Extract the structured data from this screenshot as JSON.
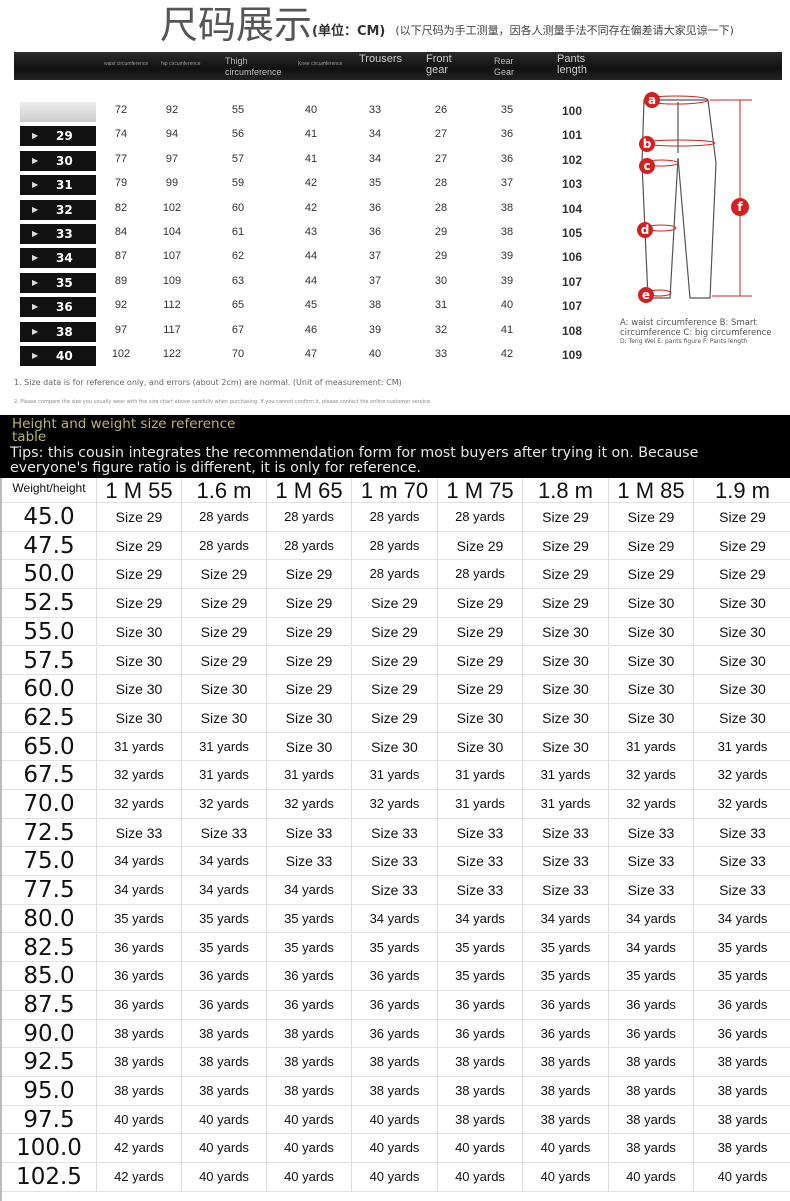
{
  "title": {
    "main": "尺码展示",
    "unit": "(单位：CM)",
    "note": "(以下尺码为手工测量，因各人测量手法不同存在偏差请大家见谅一下)"
  },
  "header": {
    "columns": [
      "waist circumference",
      "hip circumference",
      "Thigh circumference",
      "Knee circumference",
      "Trousers",
      "Front gear",
      "Rear Gear",
      "Pants length"
    ]
  },
  "size_chart": {
    "rows": [
      {
        "size": "",
        "values": [
          "72",
          "92",
          "55",
          "40",
          "33",
          "26",
          "35",
          "100"
        ]
      },
      {
        "size": "29",
        "values": [
          "74",
          "94",
          "56",
          "41",
          "34",
          "27",
          "36",
          "101"
        ]
      },
      {
        "size": "30",
        "values": [
          "77",
          "97",
          "57",
          "41",
          "34",
          "27",
          "36",
          "102"
        ]
      },
      {
        "size": "31",
        "values": [
          "79",
          "99",
          "59",
          "42",
          "35",
          "28",
          "37",
          "103"
        ]
      },
      {
        "size": "32",
        "values": [
          "82",
          "102",
          "60",
          "42",
          "36",
          "28",
          "38",
          "104"
        ]
      },
      {
        "size": "33",
        "values": [
          "84",
          "104",
          "61",
          "43",
          "36",
          "29",
          "38",
          "105"
        ]
      },
      {
        "size": "34",
        "values": [
          "87",
          "107",
          "62",
          "44",
          "37",
          "29",
          "39",
          "106"
        ]
      },
      {
        "size": "35",
        "values": [
          "89",
          "109",
          "63",
          "44",
          "37",
          "30",
          "39",
          "107"
        ]
      },
      {
        "size": "36",
        "values": [
          "92",
          "112",
          "65",
          "45",
          "38",
          "31",
          "40",
          "107"
        ]
      },
      {
        "size": "38",
        "values": [
          "97",
          "117",
          "67",
          "46",
          "39",
          "32",
          "41",
          "108"
        ]
      },
      {
        "size": "40",
        "values": [
          "102",
          "122",
          "70",
          "47",
          "40",
          "33",
          "42",
          "109"
        ]
      }
    ]
  },
  "figure": {
    "labels": [
      "a",
      "b",
      "c",
      "d",
      "e",
      "f"
    ],
    "caption": "A: waist circumference B: Smart circumference C: big circumference",
    "caption_sub": "D: Teng Wei E: pants figure F: Pants length",
    "accent": "#d42020"
  },
  "notes": [
    "1. Size data is for reference only, and errors (about 2cm) are normal. (Unit of measurement: CM)",
    "2. Please compare the size you usually wear with the size chart above carefully when purchasing. If you cannot confirm it, please contact the online customer service."
  ],
  "reference": {
    "heading": "Height and weight size reference table",
    "tips": "Tips: this cousin integrates the recommendation form for most buyers after trying it on. Because everyone's figure ratio is different, it is only for reference."
  },
  "grid": {
    "headers": [
      "Weight/height",
      "1 M 55",
      "1.6 m",
      "1 M 65",
      "1 m 70",
      "1 M 75",
      "1.8 m",
      "1 M 85",
      "1.9 m"
    ],
    "rows": [
      [
        "45.0",
        "Size 29",
        "28 yards",
        "28 yards",
        "28 yards",
        "28 yards",
        "Size 29",
        "Size 29",
        "Size 29"
      ],
      [
        "47.5",
        "Size 29",
        "28 yards",
        "28 yards",
        "28 yards",
        "Size 29",
        "Size 29",
        "Size 29",
        "Size 29"
      ],
      [
        "50.0",
        "Size 29",
        "Size 29",
        "Size 29",
        "28 yards",
        "28 yards",
        "Size 29",
        "Size 29",
        "Size 29"
      ],
      [
        "52.5",
        "Size 29",
        "Size 29",
        "Size 29",
        "Size 29",
        "Size 29",
        "Size 29",
        "Size 30",
        "Size 30"
      ],
      [
        "55.0",
        "Size 30",
        "Size 29",
        "Size 29",
        "Size 29",
        "Size 29",
        "Size 30",
        "Size 30",
        "Size 30"
      ],
      [
        "57.5",
        "Size 30",
        "Size 29",
        "Size 29",
        "Size 29",
        "Size 29",
        "Size 30",
        "Size 30",
        "Size 30"
      ],
      [
        "60.0",
        "Size 30",
        "Size 30",
        "Size 29",
        "Size 29",
        "Size 29",
        "Size 30",
        "Size 30",
        "Size 30"
      ],
      [
        "62.5",
        "Size 30",
        "Size 30",
        "Size 30",
        "Size 29",
        "Size 30",
        "Size 30",
        "Size 30",
        "Size 30"
      ],
      [
        "65.0",
        "31 yards",
        "31 yards",
        "Size 30",
        "Size 30",
        "Size 30",
        "Size 30",
        "31 yards",
        "31 yards"
      ],
      [
        "67.5",
        "32 yards",
        "31 yards",
        "31 yards",
        "31 yards",
        "31 yards",
        "31 yards",
        "32 yards",
        "32 yards"
      ],
      [
        "70.0",
        "32 yards",
        "32 yards",
        "32 yards",
        "32 yards",
        "31 yards",
        "31 yards",
        "32 yards",
        "32 yards"
      ],
      [
        "72.5",
        "Size 33",
        "Size 33",
        "Size 33",
        "Size 33",
        "Size 33",
        "Size 33",
        "Size 33",
        "Size 33"
      ],
      [
        "75.0",
        "34 yards",
        "34 yards",
        "Size 33",
        "Size 33",
        "Size 33",
        "Size 33",
        "Size 33",
        "Size 33"
      ],
      [
        "77.5",
        "34 yards",
        "34 yards",
        "34 yards",
        "Size 33",
        "Size 33",
        "Size 33",
        "Size 33",
        "Size 33"
      ],
      [
        "80.0",
        "35 yards",
        "35 yards",
        "35 yards",
        "34 yards",
        "34 yards",
        "34 yards",
        "34 yards",
        "34 yards"
      ],
      [
        "82.5",
        "36 yards",
        "35 yards",
        "35 yards",
        "35 yards",
        "35 yards",
        "35 yards",
        "34 yards",
        "35 yards"
      ],
      [
        "85.0",
        "36 yards",
        "36 yards",
        "36 yards",
        "36 yards",
        "35 yards",
        "35 yards",
        "35 yards",
        "35 yards"
      ],
      [
        "87.5",
        "36 yards",
        "36 yards",
        "36 yards",
        "36 yards",
        "36 yards",
        "36 yards",
        "36 yards",
        "36 yards"
      ],
      [
        "90.0",
        "38 yards",
        "38 yards",
        "38 yards",
        "36 yards",
        "36 yards",
        "36 yards",
        "36 yards",
        "36 yards"
      ],
      [
        "92.5",
        "38 yards",
        "38 yards",
        "38 yards",
        "38 yards",
        "38 yards",
        "38 yards",
        "38 yards",
        "38 yards"
      ],
      [
        "95.0",
        "38 yards",
        "38 yards",
        "38 yards",
        "38 yards",
        "38 yards",
        "38 yards",
        "38 yards",
        "38 yards"
      ],
      [
        "97.5",
        "40 yards",
        "40 yards",
        "40 yards",
        "40 yards",
        "38 yards",
        "38 yards",
        "38 yards",
        "38 yards"
      ],
      [
        "100.0",
        "42 yards",
        "40 yards",
        "40 yards",
        "40 yards",
        "40 yards",
        "40 yards",
        "38 yards",
        "38 yards"
      ],
      [
        "102.5",
        "42 yards",
        "40 yards",
        "40 yards",
        "40 yards",
        "40 yards",
        "40 yards",
        "40 yards",
        "40 yards"
      ]
    ]
  }
}
